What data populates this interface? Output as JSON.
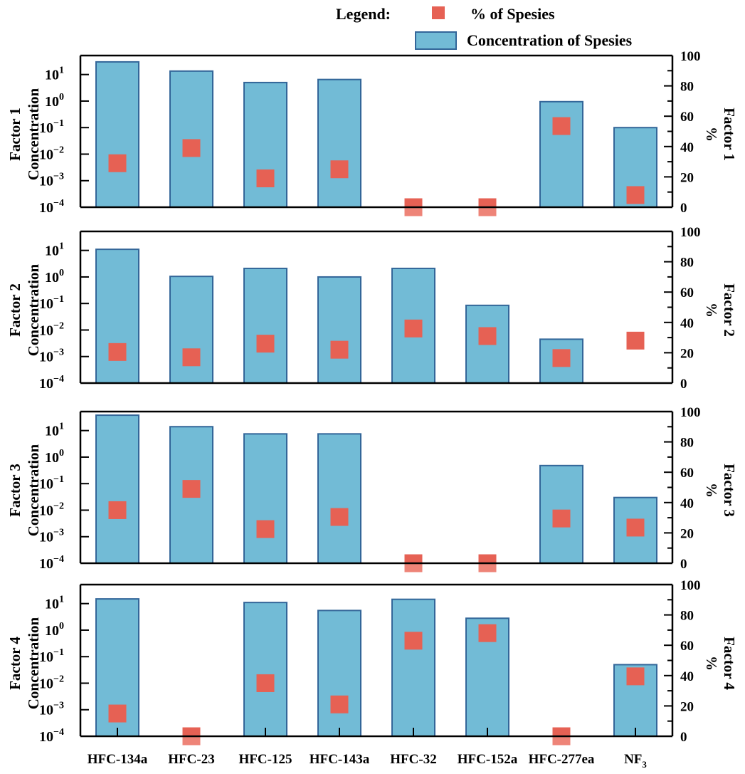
{
  "chart_data": {
    "type": "bar",
    "title": "",
    "legend": {
      "title": "Legend:",
      "placement": "top-right",
      "entries": [
        {
          "name": "% of Spesies",
          "marker": "square",
          "color": "#e66154"
        },
        {
          "name": "Concentration of Spesies",
          "marker": "bar",
          "color": "#72bbd6"
        }
      ]
    },
    "colors": {
      "bar_fill": "#72bbd6",
      "bar_edge": "#336699",
      "square": "#e66154",
      "square_clipped": "#ee8478"
    },
    "categories": [
      "HFC-134a",
      "HFC-23",
      "HFC-125",
      "HFC-143a",
      "HFC-32",
      "HFC-152a",
      "HFC-277ea",
      "NF3"
    ],
    "category_labels": [
      {
        "main": "HFC-134a",
        "sub": ""
      },
      {
        "main": "HFC-23",
        "sub": ""
      },
      {
        "main": "HFC-125",
        "sub": ""
      },
      {
        "main": "HFC-143a",
        "sub": ""
      },
      {
        "main": "HFC-32",
        "sub": ""
      },
      {
        "main": "HFC-152a",
        "sub": ""
      },
      {
        "main": "HFC-277ea",
        "sub": ""
      },
      {
        "main": "NF",
        "sub": "3"
      }
    ],
    "left_axis": {
      "scale": "log",
      "ylim": [
        0.0001,
        52
      ],
      "ticks": [
        {
          "base": "10",
          "exp": "1"
        },
        {
          "base": "10",
          "exp": "0"
        },
        {
          "base": "10",
          "exp": "−1"
        },
        {
          "base": "10",
          "exp": "−2"
        },
        {
          "base": "10",
          "exp": "−3"
        },
        {
          "base": "10",
          "exp": "−4"
        }
      ],
      "tick_values": [
        10,
        1,
        0.1,
        0.01,
        0.001,
        0.0001
      ]
    },
    "right_axis": {
      "scale": "linear",
      "ylim": [
        0,
        100
      ],
      "ticks": [
        "0",
        "20",
        "40",
        "60",
        "80",
        "100"
      ],
      "tick_values": [
        0,
        20,
        40,
        60,
        80,
        100
      ],
      "minor_tick_values": [
        10,
        30,
        50,
        70,
        90
      ]
    },
    "panels": [
      {
        "name": "Factor 1",
        "ylabel_left": [
          "Factor 1",
          "Concentration"
        ],
        "ylabel_right": [
          "Factor 1",
          "%"
        ],
        "concentration": [
          30,
          13.5,
          5,
          6.5,
          null,
          null,
          0.95,
          0.1
        ],
        "percent": [
          29,
          39,
          19,
          25,
          0,
          0,
          53.5,
          8
        ]
      },
      {
        "name": "Factor 2",
        "ylabel_left": [
          "Factor 2",
          "Concentration"
        ],
        "ylabel_right": [
          "Factor 2",
          "%"
        ],
        "concentration": [
          11,
          1.05,
          2.1,
          1.0,
          2.1,
          0.085,
          0.0045,
          null
        ],
        "percent": [
          20.5,
          17,
          26,
          22,
          36,
          31,
          16.5,
          28
        ]
      },
      {
        "name": "Factor 3",
        "ylabel_left": [
          "Factor 3",
          "Concentration"
        ],
        "ylabel_right": [
          "Factor 3",
          "%"
        ],
        "concentration": [
          38,
          14,
          7.5,
          7.5,
          null,
          null,
          0.48,
          0.03
        ],
        "percent": [
          35,
          49,
          22.5,
          30.5,
          0,
          0,
          29.5,
          23.5
        ]
      },
      {
        "name": "Factor 4",
        "ylabel_left": [
          "Factor 4",
          "Concentration"
        ],
        "ylabel_right": [
          "Factor 4",
          "%"
        ],
        "concentration": [
          15,
          null,
          11,
          5.5,
          14.5,
          2.8,
          null,
          0.05
        ],
        "percent": [
          15,
          0,
          35,
          21,
          63,
          68,
          0,
          39.5
        ]
      }
    ],
    "grid": false
  }
}
